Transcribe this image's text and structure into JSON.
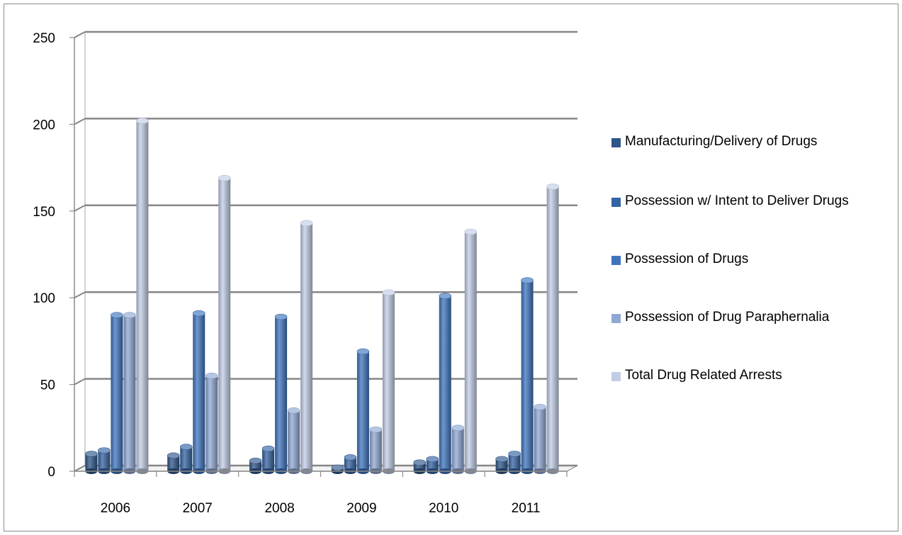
{
  "chart_data": {
    "type": "bar",
    "style": "3d-cylinder",
    "title": "",
    "xlabel": "",
    "ylabel": "",
    "categories": [
      "2006",
      "2007",
      "2008",
      "2009",
      "2010",
      "2011"
    ],
    "ylim": [
      0,
      250
    ],
    "yticks": [
      "0",
      "50",
      "100",
      "150",
      "200",
      "250"
    ],
    "grid": true,
    "legend_position": "right",
    "series": [
      {
        "name": "Manufacturing/Delivery of Drugs",
        "color": "#2e5688",
        "values": [
          10,
          9,
          6,
          2,
          5,
          7
        ]
      },
      {
        "name": "Possession w/ Intent to Deliver Drugs",
        "color": "#3463a2",
        "values": [
          12,
          14,
          13,
          8,
          7,
          10
        ]
      },
      {
        "name": "Possession of Drugs",
        "color": "#3f74bd",
        "values": [
          90,
          91,
          89,
          69,
          101,
          110
        ]
      },
      {
        "name": "Possession of Drug Paraphernalia",
        "color": "#90a8d4",
        "values": [
          90,
          55,
          35,
          24,
          25,
          37
        ]
      },
      {
        "name": "Total Drug Related Arrests",
        "color": "#c1cde5",
        "values": [
          202,
          169,
          143,
          103,
          138,
          164
        ]
      }
    ]
  }
}
